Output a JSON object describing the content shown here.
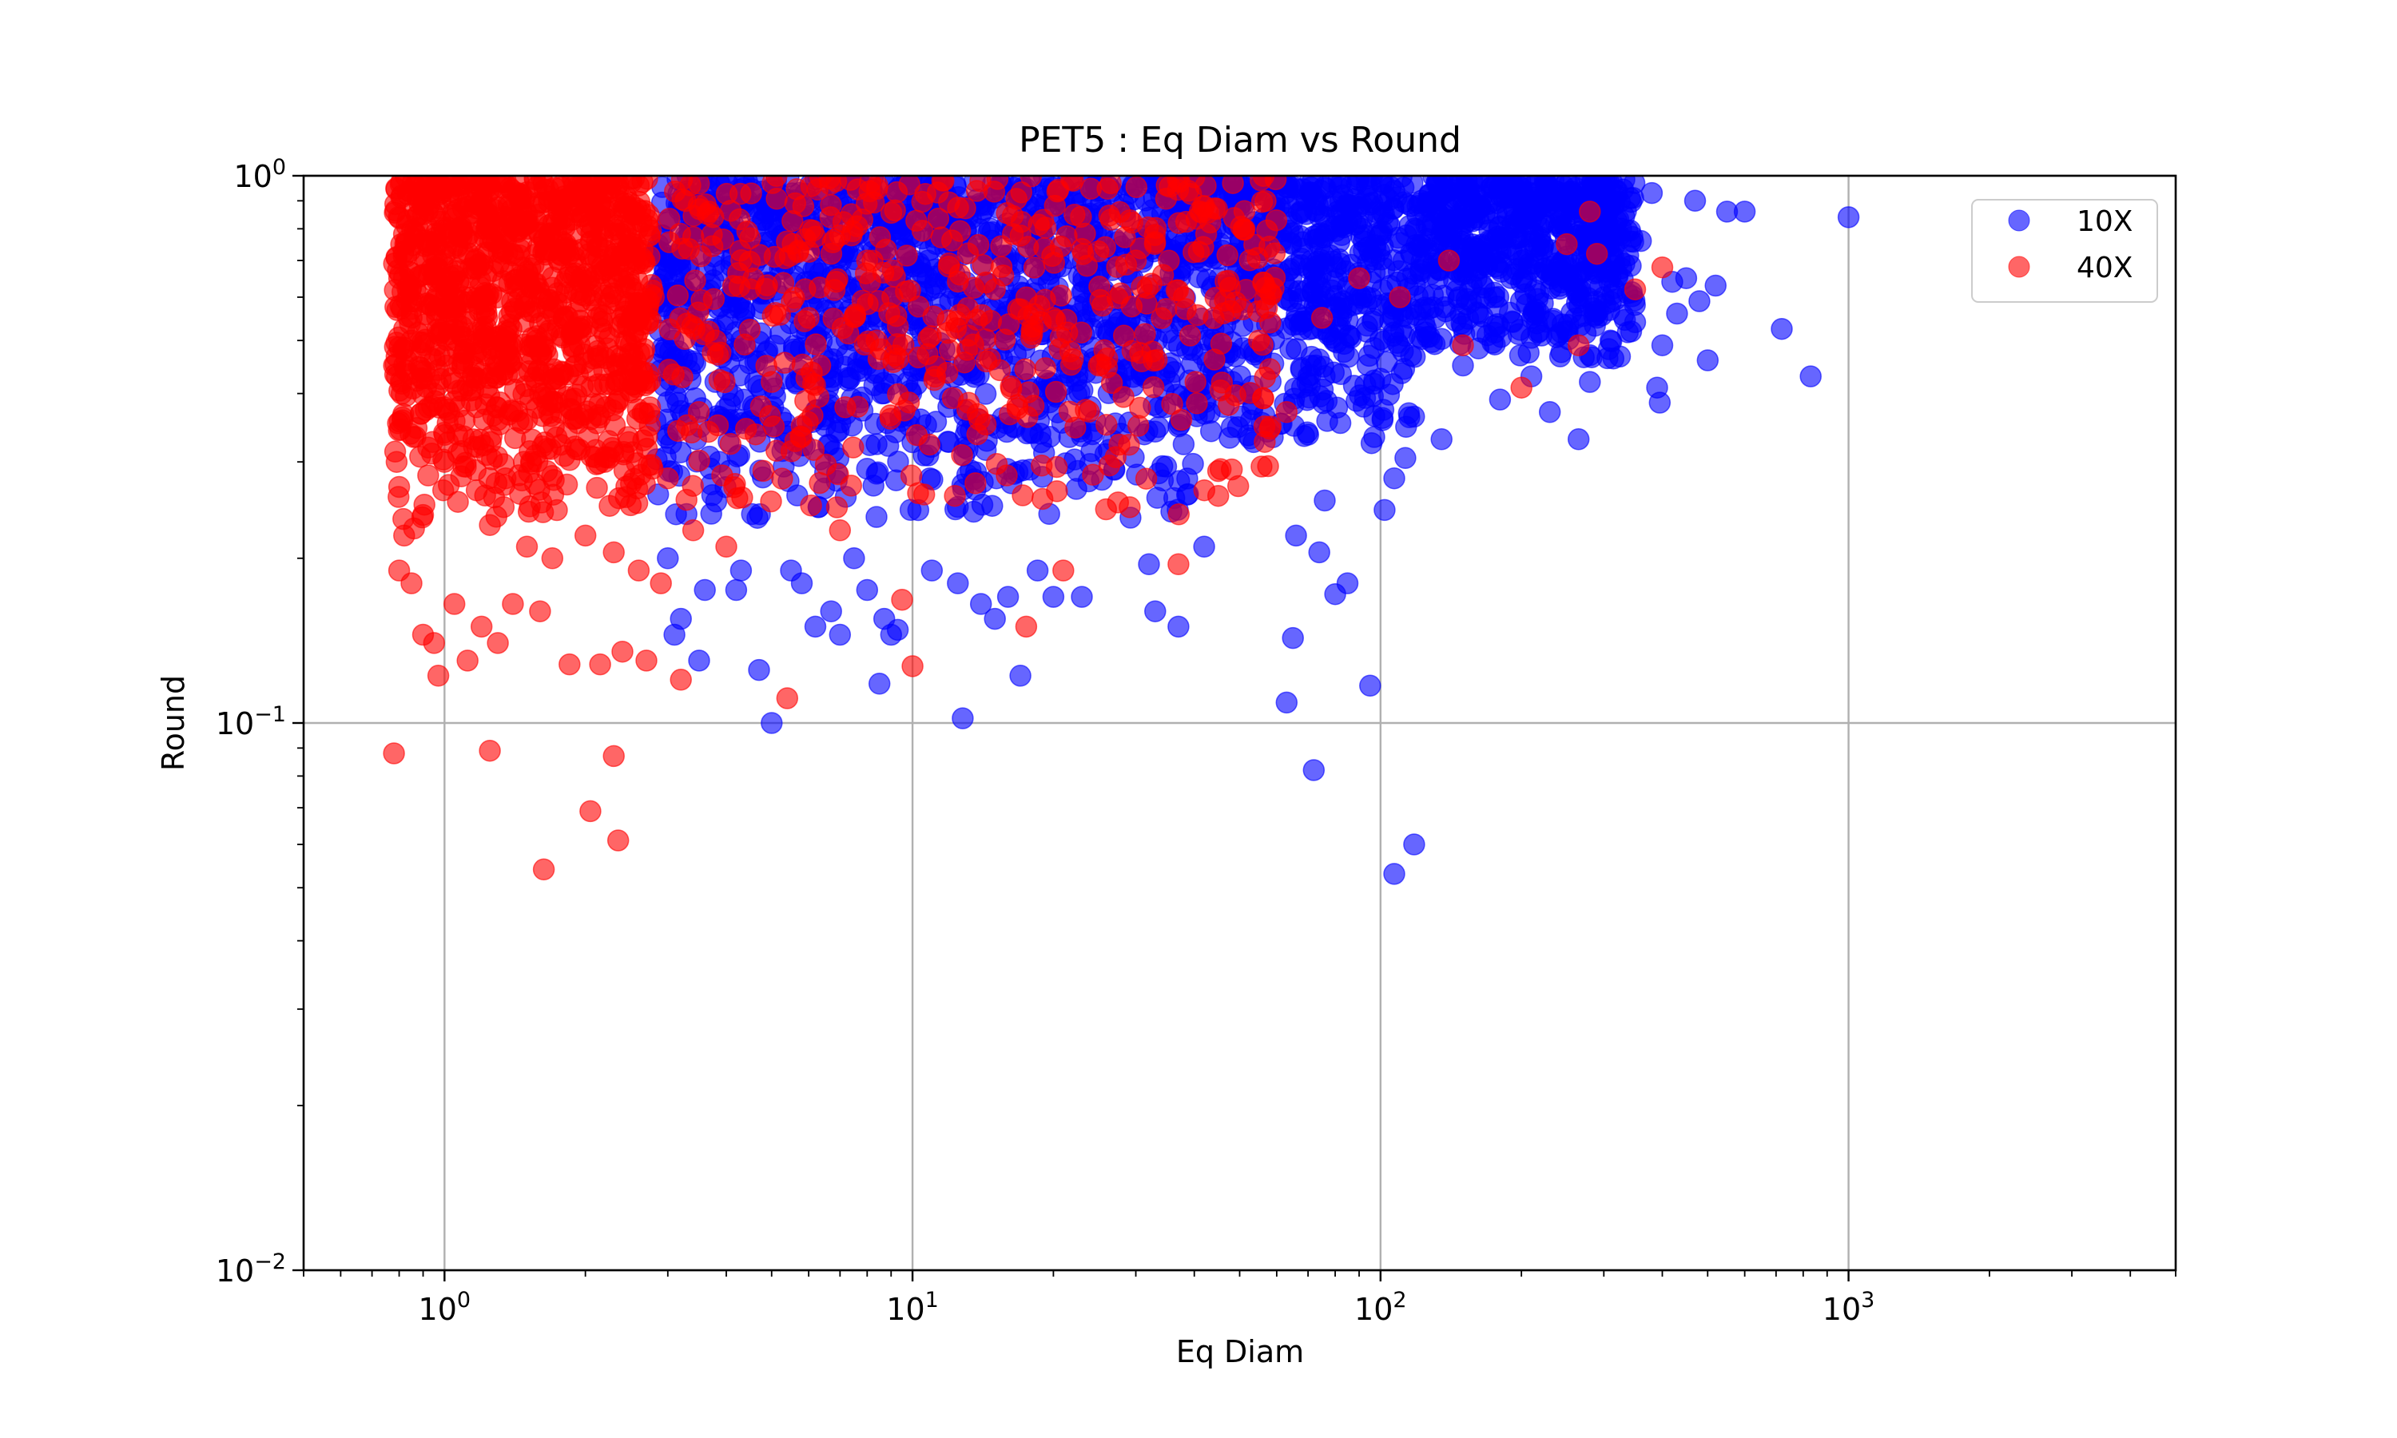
{
  "chart_data": {
    "type": "scatter",
    "title": "PET5 : Eq Diam vs Round",
    "xlabel": "Eq Diam",
    "ylabel": "Round",
    "xscale": "log",
    "yscale": "log",
    "xlim": [
      0.5,
      5000
    ],
    "ylim": [
      0.01,
      1
    ],
    "grid": true,
    "legend_position": "upper right",
    "x_ticks": [
      {
        "base": "10",
        "exp": "0",
        "value": 1
      },
      {
        "base": "10",
        "exp": "1",
        "value": 10
      },
      {
        "base": "10",
        "exp": "2",
        "value": 100
      },
      {
        "base": "10",
        "exp": "3",
        "value": 1000
      }
    ],
    "y_ticks": [
      {
        "base": "10",
        "exp": "−2",
        "value": 0.01
      },
      {
        "base": "10",
        "exp": "−1",
        "value": 0.1
      },
      {
        "base": "10",
        "exp": "0",
        "value": 1
      }
    ],
    "series": [
      {
        "name": "10X",
        "color": "#0000ff",
        "alpha": 0.6,
        "points": [
          [
            3.0,
            0.2
          ],
          [
            3.1,
            0.145
          ],
          [
            3.2,
            0.155
          ],
          [
            3.5,
            0.13
          ],
          [
            3.6,
            0.175
          ],
          [
            4.2,
            0.175
          ],
          [
            4.3,
            0.19
          ],
          [
            4.7,
            0.125
          ],
          [
            5.0,
            0.1
          ],
          [
            5.5,
            0.19
          ],
          [
            5.8,
            0.18
          ],
          [
            6.2,
            0.15
          ],
          [
            6.7,
            0.16
          ],
          [
            7.0,
            0.145
          ],
          [
            7.5,
            0.2
          ],
          [
            8.0,
            0.175
          ],
          [
            8.5,
            0.118
          ],
          [
            8.7,
            0.155
          ],
          [
            9.0,
            0.145
          ],
          [
            9.3,
            0.148
          ],
          [
            11.0,
            0.19
          ],
          [
            12.5,
            0.18
          ],
          [
            12.8,
            0.102
          ],
          [
            14.0,
            0.165
          ],
          [
            15.0,
            0.155
          ],
          [
            16.0,
            0.17
          ],
          [
            17.0,
            0.122
          ],
          [
            18.5,
            0.19
          ],
          [
            20.0,
            0.17
          ],
          [
            23.0,
            0.17
          ],
          [
            32.0,
            0.195
          ],
          [
            33.0,
            0.16
          ],
          [
            37.0,
            0.15
          ],
          [
            42.0,
            0.21
          ],
          [
            63.0,
            0.109
          ],
          [
            65.0,
            0.143
          ],
          [
            66.0,
            0.22
          ],
          [
            72.0,
            0.082
          ],
          [
            76.0,
            0.255
          ],
          [
            74.0,
            0.205
          ],
          [
            80.0,
            0.172
          ],
          [
            85.0,
            0.18
          ],
          [
            95.0,
            0.117
          ],
          [
            102.0,
            0.245
          ],
          [
            107.0,
            0.28
          ],
          [
            113.0,
            0.305
          ],
          [
            107.0,
            0.053
          ],
          [
            118.0,
            0.06
          ],
          [
            135.0,
            0.33
          ],
          [
            180.0,
            0.39
          ],
          [
            210.0,
            0.43
          ],
          [
            230.0,
            0.37
          ],
          [
            265.0,
            0.33
          ],
          [
            280.0,
            0.42
          ],
          [
            390.0,
            0.41
          ],
          [
            395.0,
            0.385
          ],
          [
            400.0,
            0.49
          ],
          [
            500.0,
            0.46
          ],
          [
            480.0,
            0.59
          ],
          [
            430.0,
            0.56
          ],
          [
            720.0,
            0.525
          ],
          [
            830.0,
            0.43
          ],
          [
            600.0,
            0.86
          ],
          [
            1000.0,
            0.84
          ],
          [
            350.0,
            0.54
          ],
          [
            310.0,
            0.5
          ],
          [
            450.0,
            0.65
          ],
          [
            520.0,
            0.63
          ],
          [
            300.0,
            0.6
          ],
          [
            280.0,
            0.47
          ],
          [
            250.0,
            0.52
          ],
          [
            150.0,
            0.45
          ],
          [
            160.0,
            0.92
          ],
          [
            200.0,
            0.95
          ],
          [
            380.0,
            0.93
          ],
          [
            470.0,
            0.9
          ],
          [
            550.0,
            0.86
          ],
          [
            420.0,
            0.64
          ],
          [
            260.0,
            0.92
          ],
          [
            320.0,
            0.94
          ],
          [
            240.0,
            0.88
          ],
          [
            360.0,
            0.76
          ]
        ]
      },
      {
        "name": "40X",
        "color": "#ff0000",
        "alpha": 0.6,
        "points": [
          [
            0.78,
            0.088
          ],
          [
            1.25,
            0.089
          ],
          [
            1.63,
            0.054
          ],
          [
            2.05,
            0.069
          ],
          [
            2.3,
            0.087
          ],
          [
            2.35,
            0.061
          ],
          [
            0.8,
            0.19
          ],
          [
            0.82,
            0.22
          ],
          [
            0.85,
            0.18
          ],
          [
            0.9,
            0.145
          ],
          [
            0.95,
            0.14
          ],
          [
            0.97,
            0.122
          ],
          [
            1.05,
            0.165
          ],
          [
            1.12,
            0.13
          ],
          [
            1.2,
            0.15
          ],
          [
            1.3,
            0.14
          ],
          [
            1.4,
            0.165
          ],
          [
            1.6,
            0.16
          ],
          [
            1.85,
            0.128
          ],
          [
            2.15,
            0.128
          ],
          [
            2.4,
            0.135
          ],
          [
            2.7,
            0.13
          ],
          [
            3.2,
            0.12
          ],
          [
            5.4,
            0.111
          ],
          [
            10.0,
            0.127
          ],
          [
            9.5,
            0.168
          ],
          [
            17.5,
            0.15
          ],
          [
            37.0,
            0.195
          ],
          [
            45.0,
            0.26
          ],
          [
            58.0,
            0.345
          ],
          [
            63.0,
            0.37
          ],
          [
            21.0,
            0.19
          ],
          [
            7.0,
            0.225
          ],
          [
            4.0,
            0.21
          ],
          [
            3.4,
            0.225
          ],
          [
            2.9,
            0.18
          ],
          [
            2.6,
            0.19
          ],
          [
            2.3,
            0.205
          ],
          [
            2.0,
            0.22
          ],
          [
            1.7,
            0.2
          ],
          [
            1.5,
            0.21
          ],
          [
            1.25,
            0.23
          ],
          [
            200.0,
            0.41
          ],
          [
            150.0,
            0.49
          ],
          [
            265.0,
            0.49
          ],
          [
            250.0,
            0.75
          ],
          [
            280.0,
            0.86
          ],
          [
            350.0,
            0.62
          ],
          [
            400.0,
            0.68
          ],
          [
            290.0,
            0.72
          ],
          [
            140.0,
            0.7
          ],
          [
            110.0,
            0.6
          ],
          [
            90.0,
            0.65
          ],
          [
            75.0,
            0.55
          ],
          [
            55.0,
            0.5
          ],
          [
            42.0,
            0.88
          ],
          [
            38.0,
            0.6
          ],
          [
            30.0,
            0.7
          ],
          [
            25.0,
            0.45
          ],
          [
            20.0,
            0.55
          ],
          [
            15.0,
            0.62
          ],
          [
            12.0,
            0.48
          ],
          [
            8.0,
            0.7
          ],
          [
            6.0,
            0.55
          ],
          [
            5.0,
            0.42
          ],
          [
            4.5,
            0.62
          ],
          [
            3.8,
            0.5
          ],
          [
            3.3,
            0.35
          ],
          [
            3.0,
            0.28
          ],
          [
            2.8,
            0.6
          ],
          [
            2.5,
            0.45
          ],
          [
            2.2,
            0.8
          ],
          [
            1.8,
            0.55
          ],
          [
            1.4,
            0.72
          ],
          [
            1.1,
            0.6
          ],
          [
            0.9,
            0.85
          ],
          [
            0.8,
            0.65
          ],
          [
            0.78,
            0.45
          ],
          [
            0.79,
            0.3
          ],
          [
            0.8,
            0.27
          ],
          [
            0.85,
            0.5
          ],
          [
            0.95,
            0.4
          ],
          [
            1.0,
            0.95
          ],
          [
            1.2,
            0.9
          ],
          [
            1.5,
            0.85
          ],
          [
            2.0,
            0.92
          ],
          [
            2.6,
            0.96
          ],
          [
            1.6,
            0.4
          ],
          [
            1.9,
            0.32
          ],
          [
            2.2,
            0.3
          ],
          [
            2.5,
            0.25
          ],
          [
            1.35,
            0.28
          ],
          [
            1.0,
            0.3
          ],
          [
            0.9,
            0.24
          ]
        ]
      }
    ]
  }
}
